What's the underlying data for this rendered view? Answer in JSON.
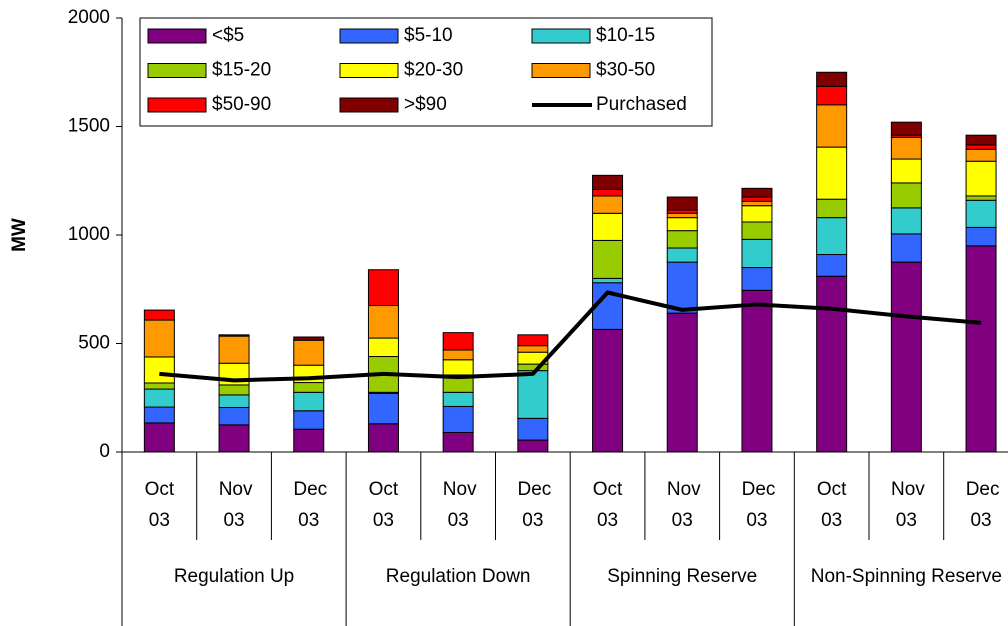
{
  "chart_data": {
    "type": "bar",
    "stacked": true,
    "y_label": "MW",
    "categories": [
      "Oct 03",
      "Nov 03",
      "Dec 03",
      "Oct 03",
      "Nov 03",
      "Dec 03",
      "Oct 03",
      "Nov 03",
      "Dec 03",
      "Oct 03",
      "Nov 03",
      "Dec 03"
    ],
    "groups": [
      "Regulation Up",
      "Regulation Down",
      "Spinning Reserve",
      "Non-Spinning Reserve"
    ],
    "ylim": [
      0,
      2000
    ],
    "yticks": [
      0,
      500,
      1000,
      1500,
      2000
    ],
    "grid": false,
    "legend": "upper left",
    "series": [
      {
        "name": "<$5",
        "color": "#800080",
        "values": [
          134,
          125,
          105,
          130,
          90,
          55,
          565,
          640,
          745,
          810,
          875,
          950
        ]
      },
      {
        "name": "$5-10",
        "color": "#3366ff",
        "values": [
          73,
          80,
          85,
          140,
          120,
          100,
          215,
          235,
          105,
          100,
          130,
          85
        ]
      },
      {
        "name": "$10-15",
        "color": "#33cccc",
        "values": [
          83,
          58,
          85,
          5,
          65,
          220,
          20,
          65,
          130,
          170,
          120,
          125
        ]
      },
      {
        "name": "$15-20",
        "color": "#99cc00",
        "values": [
          28,
          46,
          45,
          165,
          80,
          30,
          175,
          80,
          80,
          85,
          115,
          20
        ]
      },
      {
        "name": "$20-30",
        "color": "#ffff00",
        "values": [
          120,
          100,
          80,
          85,
          70,
          55,
          125,
          60,
          75,
          240,
          110,
          160
        ]
      },
      {
        "name": "$30-50",
        "color": "#ff9900",
        "values": [
          170,
          125,
          115,
          150,
          45,
          30,
          80,
          20,
          20,
          195,
          100,
          55
        ]
      },
      {
        "name": "$50-90",
        "color": "#ff0000",
        "values": [
          46,
          0,
          0,
          165,
          80,
          50,
          30,
          15,
          20,
          85,
          10,
          20
        ]
      },
      {
        "name": ">$90",
        "color": "#800000",
        "values": [
          0,
          6,
          15,
          0,
          0,
          0,
          65,
          60,
          40,
          65,
          60,
          45
        ]
      },
      {
        "name": "Purchased",
        "color": "#000000",
        "type": "line",
        "values": [
          360,
          330,
          340,
          360,
          345,
          360,
          735,
          655,
          680,
          660,
          625,
          595
        ]
      }
    ]
  }
}
